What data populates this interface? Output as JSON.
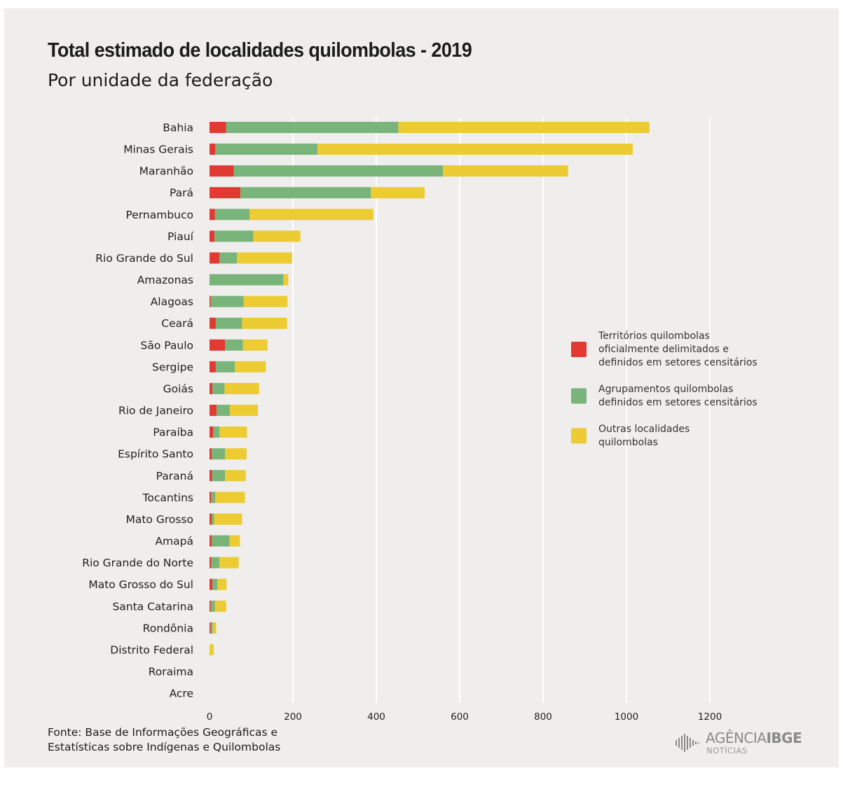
{
  "header": {
    "title": "Total estimado de localidades quilombolas - 2019",
    "subtitle": "Por unidade da federação"
  },
  "footer": {
    "source_line1": "Fonte: Base de Informações Geográficas e",
    "source_line2": "Estatísticas sobre Indígenas e Quilombolas",
    "logo_main": "AGÊNCIA",
    "logo_bold": "IBGE",
    "logo_sub": "NOTÍCIAS"
  },
  "chart_data": {
    "type": "bar",
    "orientation": "horizontal",
    "stacked": true,
    "title": "Total estimado de localidades quilombolas - 2019",
    "subtitle": "Por unidade da federação",
    "xlim": [
      0,
      1200
    ],
    "xticks": [
      0,
      200,
      400,
      600,
      800,
      1000,
      1200
    ],
    "grid": "vertical",
    "legend_position": "right",
    "categories": [
      "Bahia",
      "Minas Gerais",
      "Maranhão",
      "Pará",
      "Pernambuco",
      "Piauí",
      "Rio Grande do Sul",
      "Amazonas",
      "Alagoas",
      "Ceará",
      "São Paulo",
      "Sergipe",
      "Goiás",
      "Rio de Janeiro",
      "Paraíba",
      "Espírito Santo",
      "Paraná",
      "Tocantins",
      "Mato Grosso",
      "Amapá",
      "Rio Grande do Norte",
      "Mato Grosso do Sul",
      "Santa Catarina",
      "Rondônia",
      "Distrito Federal",
      "Roraima",
      "Acre"
    ],
    "series": [
      {
        "name": "Territórios quilombolas oficialmente delimitados e definidos em setores censitários",
        "legend_lines": [
          "Territórios quilombolas",
          "oficialmente delimitados e",
          "definidos em setores censitários"
        ],
        "color": "#e03a33",
        "values": [
          40,
          14,
          58,
          74,
          13,
          12,
          24,
          0,
          3,
          15,
          37,
          15,
          7,
          17,
          9,
          5,
          6,
          4,
          5,
          5,
          4,
          7,
          3,
          3,
          0,
          0,
          0
        ]
      },
      {
        "name": "Agrupamentos quilombolas definidos em setores censitários",
        "legend_lines": [
          "Agrupamentos quilombolas",
          "definidos em setores censitários"
        ],
        "color": "#79b47b",
        "values": [
          413,
          245,
          502,
          313,
          83,
          93,
          42,
          177,
          79,
          63,
          43,
          46,
          29,
          32,
          15,
          32,
          31,
          10,
          6,
          43,
          20,
          12,
          10,
          5,
          0,
          0,
          0
        ]
      },
      {
        "name": "Outras localidades quilombolas",
        "legend_lines": [
          "Outras localidades",
          "quilombolas"
        ],
        "color": "#eccb33",
        "values": [
          602,
          756,
          300,
          129,
          297,
          113,
          132,
          12,
          105,
          108,
          59,
          74,
          83,
          67,
          66,
          52,
          50,
          71,
          67,
          25,
          46,
          22,
          27,
          8,
          10,
          0,
          0
        ]
      }
    ]
  }
}
